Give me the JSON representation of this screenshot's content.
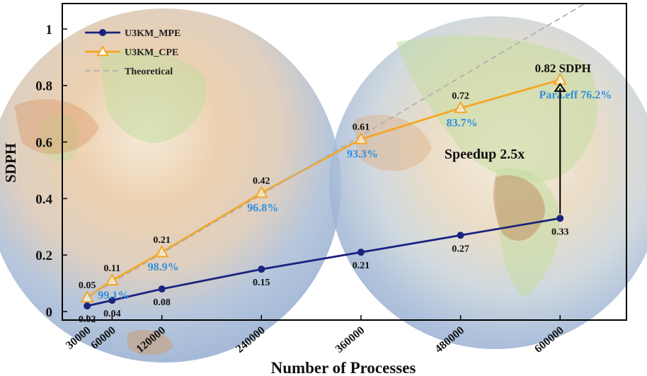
{
  "chart_data": {
    "type": "line",
    "xlabel": "Number of Processes",
    "ylabel": "SDPH",
    "xlim": [
      0,
      680000
    ],
    "ylim": [
      -0.03,
      1.09
    ],
    "x_ticks": [
      "30000",
      "60000",
      "120000",
      "240000",
      "360000",
      "480000",
      "600000"
    ],
    "x_tick_values": [
      30000,
      60000,
      120000,
      240000,
      360000,
      480000,
      600000
    ],
    "y_ticks": [
      "0",
      "0.2",
      "0.4",
      "0.6",
      "0.8",
      "1"
    ],
    "y_tick_values": [
      0,
      0.2,
      0.4,
      0.6,
      0.8,
      1
    ],
    "legend_position": "top-left",
    "grid": false,
    "series": [
      {
        "name": "U3KM_MPE",
        "color": "#1a237e",
        "marker": "circle",
        "x": [
          30000,
          60000,
          120000,
          240000,
          360000,
          480000,
          600000
        ],
        "y": [
          0.02,
          0.04,
          0.08,
          0.15,
          0.21,
          0.27,
          0.33
        ],
        "labels": [
          "0.02",
          "0.04",
          "0.08",
          "0.15",
          "0.21",
          "0.27",
          "0.33"
        ]
      },
      {
        "name": "U3KM_CPE",
        "color": "#f5a623",
        "marker": "triangle",
        "x": [
          30000,
          60000,
          120000,
          240000,
          360000,
          480000,
          600000
        ],
        "y": [
          0.05,
          0.11,
          0.21,
          0.42,
          0.61,
          0.72,
          0.82
        ],
        "labels": [
          "0.05",
          "0.11",
          "0.21",
          "0.42",
          "0.61",
          "0.72",
          ""
        ]
      },
      {
        "name": "Theoretical",
        "color": "#b0b0b0",
        "style": "dashed",
        "x": [
          30000,
          630000
        ],
        "y": [
          0.05,
          1.09
        ]
      }
    ],
    "efficiency_labels": [
      {
        "x": 60000,
        "y": 0.11,
        "text": "99.1%"
      },
      {
        "x": 120000,
        "y": 0.21,
        "text": "98.9%"
      },
      {
        "x": 240000,
        "y": 0.42,
        "text": "96.8%"
      },
      {
        "x": 360000,
        "y": 0.61,
        "text": "93.3%"
      },
      {
        "x": 480000,
        "y": 0.72,
        "text": "83.7%"
      },
      {
        "x": 600000,
        "y": 0.82,
        "text": "Para.eff 76.2%"
      }
    ],
    "annotations": {
      "peak_label": "0.82 SDPH",
      "peak_color": "#e8151b",
      "speedup_label": "Speedup 2.5x",
      "efficiency_color": "#2e8fe0"
    }
  }
}
